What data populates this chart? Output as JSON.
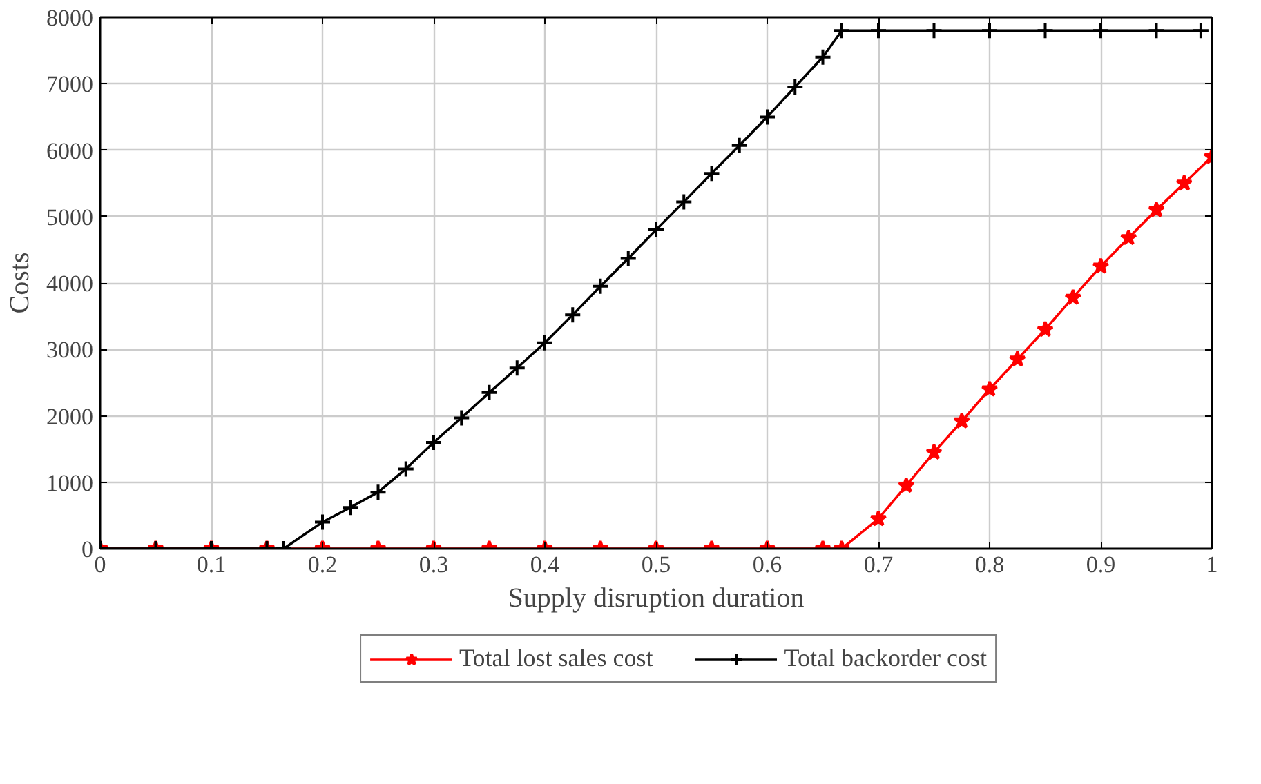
{
  "chart_data": {
    "type": "line",
    "xlabel": "Supply disruption duration",
    "ylabel": "Costs",
    "xlim": [
      0,
      1
    ],
    "ylim": [
      0,
      8000
    ],
    "xticks": [
      0,
      0.1,
      0.2,
      0.3,
      0.4,
      0.5,
      0.6,
      0.7,
      0.8,
      0.9,
      1
    ],
    "yticks": [
      0,
      1000,
      2000,
      3000,
      4000,
      5000,
      6000,
      7000,
      8000
    ],
    "grid": true,
    "legend": "bottom",
    "line_style": "solid",
    "series": [
      {
        "name": "Total lost sales cost",
        "color": "#ff0000",
        "marker": "star",
        "x": [
          0,
          0.05,
          0.1,
          0.15,
          0.2,
          0.25,
          0.3,
          0.35,
          0.4,
          0.45,
          0.5,
          0.55,
          0.6,
          0.65,
          0.667,
          0.7,
          0.725,
          0.75,
          0.775,
          0.8,
          0.825,
          0.85,
          0.875,
          0.9,
          0.925,
          0.95,
          0.975,
          1.0
        ],
        "values": [
          0,
          0,
          0,
          0,
          0,
          0,
          0,
          0,
          0,
          0,
          0,
          0,
          0,
          0,
          0,
          450,
          950,
          1450,
          1920,
          2400,
          2850,
          3300,
          3780,
          4250,
          4680,
          5100,
          5500,
          5900
        ]
      },
      {
        "name": "Total backorder cost",
        "color": "#000000",
        "marker": "cross",
        "x": [
          0,
          0.05,
          0.1,
          0.15,
          0.165,
          0.2,
          0.225,
          0.25,
          0.275,
          0.3,
          0.325,
          0.35,
          0.375,
          0.4,
          0.425,
          0.45,
          0.475,
          0.5,
          0.525,
          0.55,
          0.575,
          0.6,
          0.625,
          0.65,
          0.667,
          0.7,
          0.75,
          0.8,
          0.85,
          0.9,
          0.95,
          0.99
        ],
        "values": [
          0,
          0,
          0,
          0,
          0,
          400,
          620,
          850,
          1200,
          1600,
          1970,
          2350,
          2720,
          3100,
          3520,
          3950,
          4370,
          4800,
          5220,
          5650,
          6070,
          6500,
          6950,
          7400,
          7800,
          7800,
          7800,
          7800,
          7800,
          7800,
          7800,
          7800
        ]
      }
    ]
  }
}
